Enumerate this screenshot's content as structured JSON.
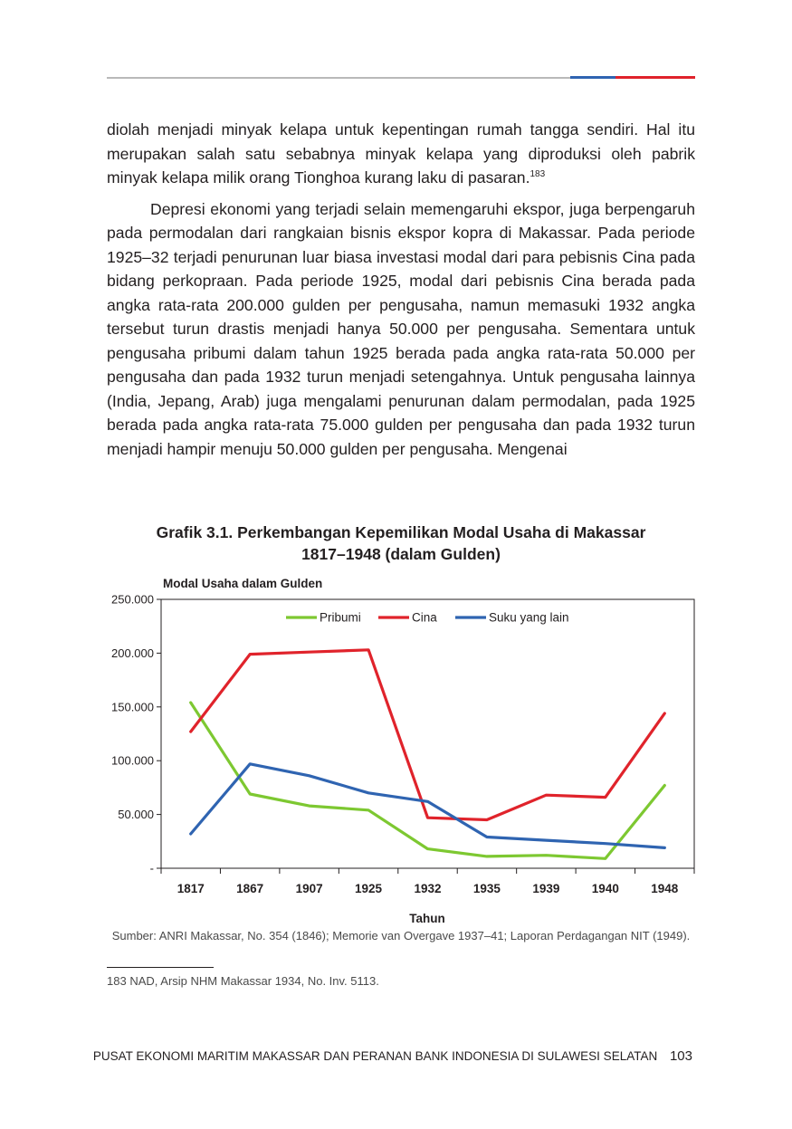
{
  "colors": {
    "accent_blue": "#2f64b1",
    "accent_red": "#e0232b",
    "rule_grey": "#b9b9b9"
  },
  "paragraphs": [
    {
      "text": "diolah menjadi minyak kelapa untuk kepentingan rumah tangga sendiri. Hal itu merupakan salah satu sebabnya minyak kelapa yang diproduksi oleh pabrik minyak kelapa milik orang Tionghoa kurang laku di pasaran.",
      "footnote_ref": "183"
    },
    {
      "text": "Depresi ekonomi yang terjadi selain memengaruhi ekspor, juga berpengaruh pada permodalan dari rangkaian bisnis ekspor kopra di Makassar. Pada periode  1925–32 terjadi penurunan luar biasa investasi modal dari para pebisnis Cina pada bidang perkopraan. Pada periode 1925, modal dari pebisnis Cina berada pada angka rata-rata 200.000 gulden per pengusaha, namun memasuki 1932 angka tersebut turun drastis menjadi hanya 50.000 per pengusaha. Sementara untuk pengusaha pribumi dalam tahun 1925 berada pada angka rata-rata 50.000 per pengusaha dan pada 1932 turun menjadi setengahnya. Untuk pengusaha lainnya (India, Jepang, Arab) juga mengalami penurunan dalam permodalan, pada 1925 berada pada angka rata-rata 75.000 gulden per pengusaha dan pada 1932 turun menjadi hampir menuju 50.000 gulden per pengusaha. Mengenai"
    }
  ],
  "figure": {
    "title_line1": "Grafik 3.1. Perkembangan Kepemilikan Modal Usaha di Makassar",
    "title_line2": "1817–1948 (dalam Gulden)",
    "source": "Sumber: ANRI Makassar, No. 354 (1846); Memorie van Overgave 1937–41; Laporan Perdagangan NIT (1949)."
  },
  "chart_data": {
    "type": "line",
    "ylabel": "Modal Usaha dalam Gulden",
    "xlabel": "Tahun",
    "categories": [
      "1817",
      "1867",
      "1907",
      "1925",
      "1932",
      "1935",
      "1939",
      "1940",
      "1948"
    ],
    "ylim": [
      0,
      250000
    ],
    "yticks": [
      0,
      50000,
      100000,
      150000,
      200000,
      250000
    ],
    "ytick_labels": [
      "-",
      "50.000",
      "100.000",
      "150.000",
      "200.000",
      "250.000"
    ],
    "grid": false,
    "legend_position": "top-center",
    "series": [
      {
        "name": "Pribumi",
        "color": "#7dc831",
        "values": [
          154000,
          69000,
          58000,
          54000,
          18000,
          11000,
          12000,
          9000,
          77000
        ]
      },
      {
        "name": "Cina",
        "color": "#e0232b",
        "values": [
          127000,
          199000,
          201000,
          203000,
          47000,
          45000,
          68000,
          66000,
          144000
        ]
      },
      {
        "name": "Suku yang lain",
        "color": "#2f64b1",
        "values": [
          32000,
          97000,
          86000,
          70000,
          62000,
          29000,
          26000,
          23000,
          19000
        ]
      }
    ]
  },
  "footnotes": [
    {
      "number": "183",
      "text": "NAD, Arsip NHM Makassar 1934, No. Inv. 5113."
    }
  ],
  "footer": {
    "running_title": "PUSAT EKONOMI MARITIM MAKASSAR DAN PERANAN BANK INDONESIA DI SULAWESI SELATAN",
    "page_number": "103"
  }
}
